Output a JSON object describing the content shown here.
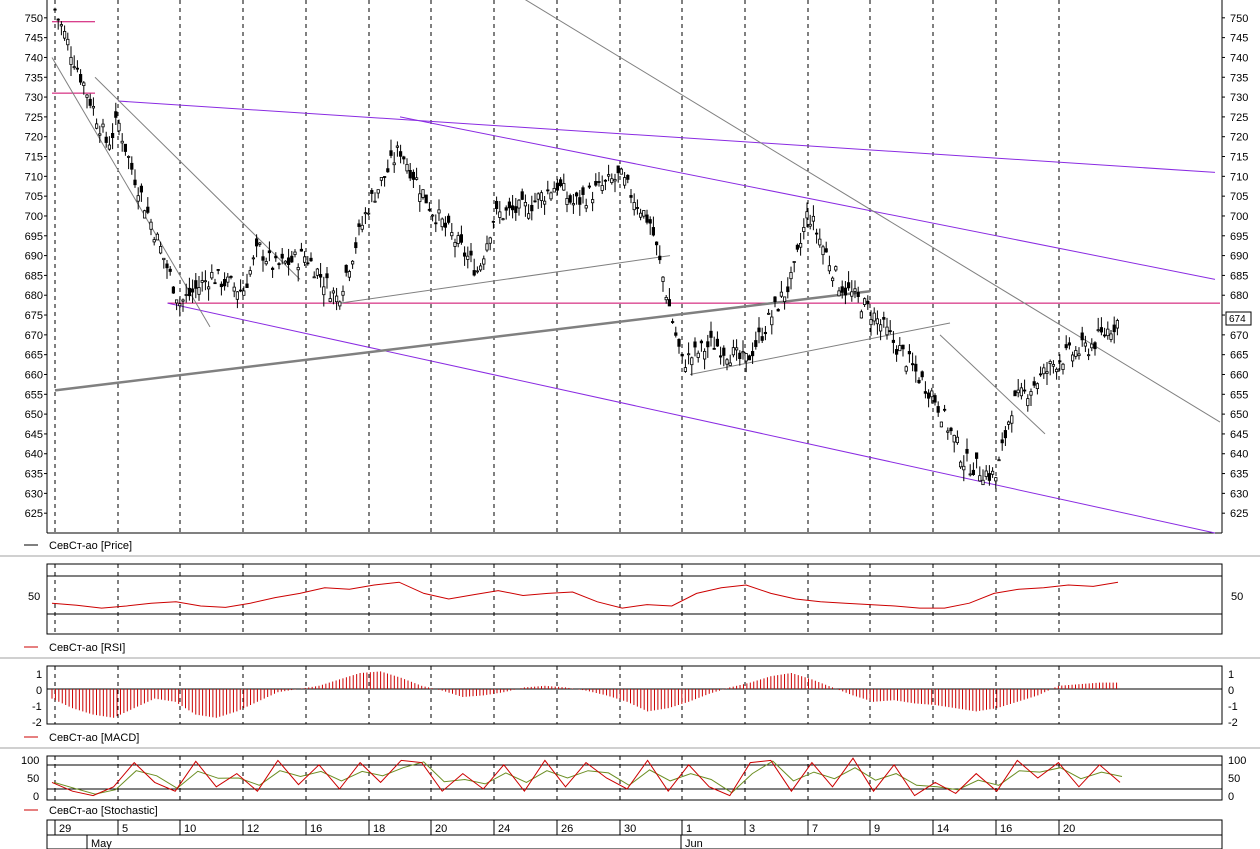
{
  "panels": {
    "price": {
      "legend_label": "СевСт-ао [Price]",
      "series_color": "#000000",
      "last_price_label": "674"
    },
    "rsi": {
      "legend_label": "СевСт-ао [RSI]",
      "series_color": "#cc0000",
      "tick_label": "50"
    },
    "macd": {
      "legend_label": "СевСт-ао [MACD]",
      "series_color": "#cc0000",
      "tick_labels": [
        "1",
        "0",
        "-1",
        "-2"
      ]
    },
    "stochastic": {
      "legend_label": "СевСт-ао [Stochastic]",
      "series_color": "#cc0000",
      "signal_color": "#6b8e23",
      "tick_labels": [
        "100",
        "50",
        "0"
      ]
    }
  },
  "time_axis": {
    "day_labels": [
      "29",
      "5",
      "10",
      "12",
      "16",
      "18",
      "20",
      "24",
      "26",
      "30",
      "1",
      "3",
      "7",
      "9",
      "14",
      "16",
      "20"
    ],
    "month_labels": [
      "May",
      "Jun"
    ]
  },
  "chart_data": [
    {
      "type": "candlestick",
      "series_name": "СевСт-ао",
      "ylim": [
        620,
        755
      ],
      "y_ticks": [
        625,
        630,
        635,
        640,
        645,
        650,
        655,
        660,
        665,
        670,
        675,
        680,
        685,
        690,
        695,
        700,
        705,
        710,
        715,
        720,
        725,
        730,
        735,
        740,
        745,
        750,
        755
      ],
      "grid": "vertical dashed lines at each labelled day",
      "last_price": 674,
      "close_path": [
        {
          "x": "Apr 29",
          "y": 752
        },
        {
          "x": "May 4",
          "y": 718
        },
        {
          "x": "May 5",
          "y": 724
        },
        {
          "x": "May 6",
          "y": 713
        },
        {
          "x": "May 10",
          "y": 678
        },
        {
          "x": "May 11",
          "y": 685
        },
        {
          "x": "May 12",
          "y": 681
        },
        {
          "x": "May 13",
          "y": 692
        },
        {
          "x": "May 14",
          "y": 687
        },
        {
          "x": "May 16",
          "y": 690
        },
        {
          "x": "May 17",
          "y": 679
        },
        {
          "x": "May 18",
          "y": 703
        },
        {
          "x": "May 19",
          "y": 717
        },
        {
          "x": "May 20",
          "y": 702
        },
        {
          "x": "May 23",
          "y": 686
        },
        {
          "x": "May 24",
          "y": 700
        },
        {
          "x": "May 25",
          "y": 702
        },
        {
          "x": "May 26",
          "y": 708
        },
        {
          "x": "May 27",
          "y": 703
        },
        {
          "x": "May 30",
          "y": 710
        },
        {
          "x": "May 31",
          "y": 698
        },
        {
          "x": "Jun 1",
          "y": 663
        },
        {
          "x": "Jun 2",
          "y": 668
        },
        {
          "x": "Jun 3",
          "y": 663
        },
        {
          "x": "Jun 6",
          "y": 684
        },
        {
          "x": "Jun 7",
          "y": 701
        },
        {
          "x": "Jun 8",
          "y": 683
        },
        {
          "x": "Jun 9",
          "y": 676
        },
        {
          "x": "Jun 10",
          "y": 672
        },
        {
          "x": "Jun 13",
          "y": 659
        },
        {
          "x": "Jun 14",
          "y": 655
        },
        {
          "x": "Jun 15",
          "y": 638
        },
        {
          "x": "Jun 16",
          "y": 634
        },
        {
          "x": "Jun 17",
          "y": 652
        },
        {
          "x": "Jun 20",
          "y": 664
        },
        {
          "x": "Jun 21",
          "y": 667
        },
        {
          "x": "Jun 22",
          "y": 674
        }
      ],
      "horizontal_levels": [
        {
          "y": 678,
          "color": "#cc0066"
        },
        {
          "y": 749,
          "color": "#cc0066"
        },
        {
          "y": 731,
          "color": "#cc0066"
        }
      ],
      "trend_lines": [
        {
          "from": {
            "x": "May 5",
            "y": 729
          },
          "to": {
            "x": "Jun 22",
            "y": 711
          },
          "color": "#8a2be2"
        },
        {
          "from": {
            "x": "May 19",
            "y": 725
          },
          "to": {
            "x": "Jun 22",
            "y": 684
          },
          "color": "#8a2be2"
        },
        {
          "from": {
            "x": "May 9",
            "y": 678
          },
          "to": {
            "x": "Jun 22",
            "y": 620
          },
          "color": "#8a2be2"
        },
        {
          "from": {
            "x": "Apr 29",
            "y": 656
          },
          "to": {
            "x": "Jun 9",
            "y": 681
          },
          "color": "#808080"
        }
      ]
    },
    {
      "type": "line",
      "series_name": "RSI",
      "ylim": [
        0,
        100
      ],
      "reference_levels": [
        30,
        70
      ],
      "values": [
        44,
        41,
        37,
        40,
        44,
        46,
        40,
        38,
        44,
        52,
        58,
        66,
        64,
        70,
        74,
        58,
        50,
        56,
        62,
        55,
        58,
        60,
        46,
        37,
        42,
        40,
        58,
        66,
        70,
        58,
        50,
        46,
        44,
        42,
        40,
        37,
        37,
        44,
        58,
        64,
        66,
        70,
        68,
        74
      ]
    },
    {
      "type": "bar",
      "series_name": "MACD",
      "ylim": [
        -2.2,
        1.3
      ],
      "values": [
        -0.6,
        -1.2,
        -1.6,
        -1.8,
        -1.2,
        -0.6,
        -0.8,
        -1.6,
        -1.8,
        -1.4,
        -0.8,
        -0.2,
        0.0,
        0.2,
        0.6,
        1.0,
        1.1,
        0.7,
        0.2,
        -0.1,
        -0.5,
        -0.4,
        -0.2,
        0.1,
        0.2,
        0.1,
        -0.1,
        -0.4,
        -0.8,
        -1.4,
        -1.2,
        -0.8,
        -0.3,
        0.1,
        0.4,
        0.8,
        1.0,
        0.6,
        0.1,
        -0.4,
        -0.8,
        -0.7,
        -0.9,
        -1.0,
        -1.2,
        -1.4,
        -1.2,
        -0.8,
        -0.4,
        0.2,
        0.3,
        0.4,
        0.4
      ]
    },
    {
      "type": "line",
      "series_name": "Stochastic",
      "ylim": [
        0,
        100
      ],
      "reference_levels": [
        20,
        80
      ],
      "values": [
        40,
        20,
        10,
        30,
        85,
        40,
        20,
        88,
        30,
        60,
        20,
        90,
        35,
        80,
        25,
        85,
        40,
        90,
        85,
        20,
        60,
        25,
        80,
        20,
        90,
        30,
        85,
        50,
        25,
        90,
        20,
        80,
        30,
        10,
        85,
        90,
        20,
        85,
        30,
        95,
        20,
        80,
        10,
        40,
        15,
        60,
        20,
        90,
        50,
        85,
        30,
        80,
        40
      ]
    }
  ]
}
